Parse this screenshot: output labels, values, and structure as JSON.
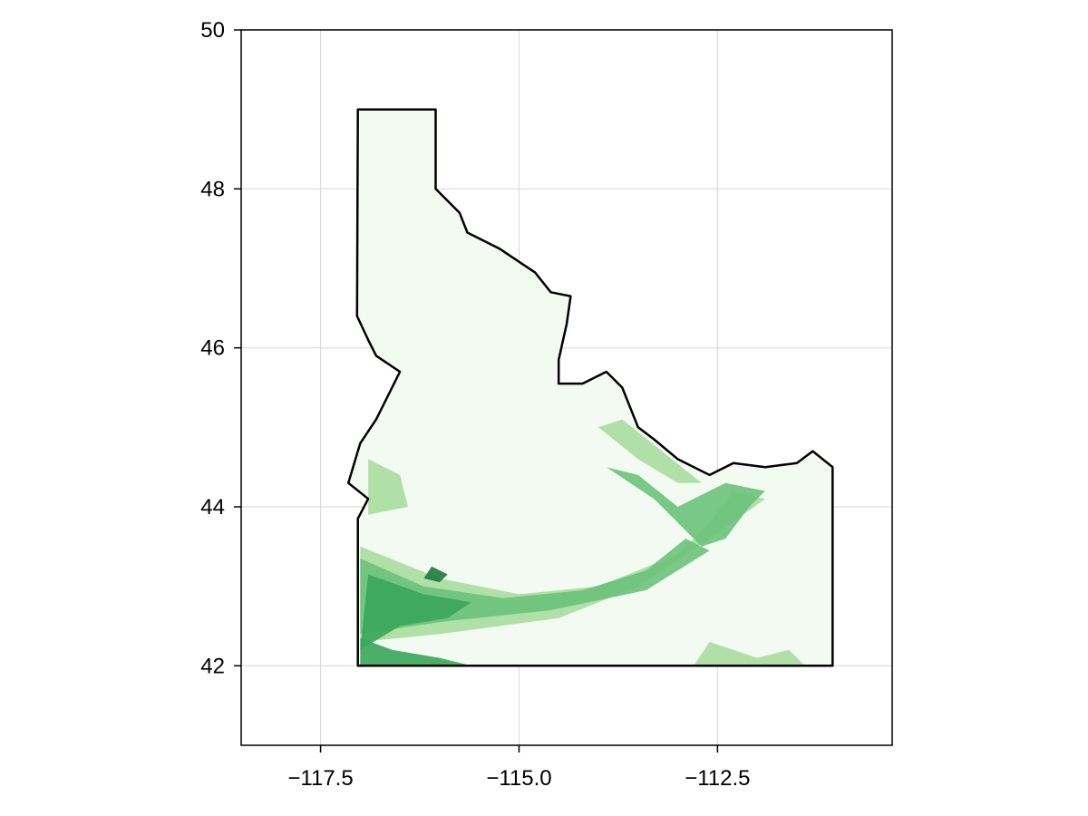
{
  "chart_data": {
    "type": "heatmap",
    "projection": "longitude-latitude",
    "xlim": [
      -118.5,
      -110.3
    ],
    "ylim": [
      41,
      50
    ],
    "x_ticks": [
      {
        "value": -117.5,
        "label": "−117.5"
      },
      {
        "value": -115.0,
        "label": "−115.0"
      },
      {
        "value": -112.5,
        "label": "−112.5"
      }
    ],
    "y_ticks": [
      {
        "value": 42,
        "label": "42"
      },
      {
        "value": 44,
        "label": "44"
      },
      {
        "value": 46,
        "label": "46"
      },
      {
        "value": 48,
        "label": "48"
      },
      {
        "value": 50,
        "label": "50"
      }
    ],
    "grid": true,
    "legend": "none",
    "colormap": "greens",
    "colors": {
      "boundary": "#000000",
      "background_fill": "#f3faf1",
      "light_green": "#a8dca0",
      "medium_green": "#6cc27a",
      "dark_green": "#3aa65a",
      "darkest_green": "#1f7a3f",
      "grid": "#dddddd"
    },
    "region": {
      "name": "Idaho",
      "outline": [
        [
          -117.03,
          49.0
        ],
        [
          -116.05,
          49.0
        ],
        [
          -116.05,
          48.0
        ],
        [
          -115.75,
          47.7
        ],
        [
          -115.65,
          47.45
        ],
        [
          -115.25,
          47.25
        ],
        [
          -114.8,
          46.95
        ],
        [
          -114.6,
          46.7
        ],
        [
          -114.35,
          46.65
        ],
        [
          -114.4,
          46.3
        ],
        [
          -114.5,
          45.85
        ],
        [
          -114.5,
          45.55
        ],
        [
          -114.2,
          45.55
        ],
        [
          -113.9,
          45.7
        ],
        [
          -113.7,
          45.5
        ],
        [
          -113.5,
          45.0
        ],
        [
          -113.3,
          44.85
        ],
        [
          -113.0,
          44.6
        ],
        [
          -112.6,
          44.4
        ],
        [
          -112.3,
          44.55
        ],
        [
          -111.9,
          44.5
        ],
        [
          -111.5,
          44.55
        ],
        [
          -111.3,
          44.7
        ],
        [
          -111.05,
          44.5
        ],
        [
          -111.05,
          42.0
        ],
        [
          -117.03,
          42.0
        ],
        [
          -117.03,
          43.85
        ],
        [
          -116.9,
          44.1
        ],
        [
          -117.15,
          44.3
        ],
        [
          -117.0,
          44.8
        ],
        [
          -116.8,
          45.1
        ],
        [
          -116.6,
          45.5
        ],
        [
          -116.5,
          45.7
        ],
        [
          -116.8,
          45.9
        ],
        [
          -116.9,
          46.1
        ],
        [
          -117.04,
          46.4
        ],
        [
          -117.03,
          49.0
        ]
      ]
    },
    "density_zones": [
      {
        "level": "light",
        "polygon": [
          [
            -117.0,
            43.5
          ],
          [
            -116.0,
            43.1
          ],
          [
            -115.0,
            42.9
          ],
          [
            -114.0,
            43.0
          ],
          [
            -113.0,
            43.4
          ],
          [
            -112.6,
            43.8
          ],
          [
            -112.3,
            44.2
          ],
          [
            -111.9,
            44.1
          ],
          [
            -112.6,
            43.6
          ],
          [
            -113.5,
            43.0
          ],
          [
            -114.5,
            42.6
          ],
          [
            -116.0,
            42.4
          ],
          [
            -117.0,
            42.3
          ]
        ]
      },
      {
        "level": "medium",
        "polygon": [
          [
            -117.0,
            43.35
          ],
          [
            -116.2,
            43.0
          ],
          [
            -115.2,
            42.85
          ],
          [
            -114.2,
            42.95
          ],
          [
            -113.4,
            43.2
          ],
          [
            -112.9,
            43.6
          ],
          [
            -112.6,
            43.45
          ],
          [
            -113.4,
            42.95
          ],
          [
            -114.6,
            42.7
          ],
          [
            -116.0,
            42.55
          ],
          [
            -117.0,
            42.4
          ]
        ]
      },
      {
        "level": "dark",
        "polygon": [
          [
            -116.9,
            43.15
          ],
          [
            -116.2,
            42.9
          ],
          [
            -115.6,
            42.8
          ],
          [
            -115.9,
            42.6
          ],
          [
            -116.5,
            42.5
          ],
          [
            -117.0,
            42.2
          ]
        ]
      },
      {
        "level": "medium",
        "polygon": [
          [
            -113.9,
            44.5
          ],
          [
            -113.3,
            44.1
          ],
          [
            -112.9,
            43.7
          ],
          [
            -112.7,
            43.5
          ],
          [
            -112.4,
            43.6
          ],
          [
            -112.1,
            44.0
          ],
          [
            -111.9,
            44.2
          ],
          [
            -112.4,
            44.3
          ],
          [
            -113.0,
            44.0
          ],
          [
            -113.5,
            44.4
          ]
        ]
      },
      {
        "level": "light",
        "polygon": [
          [
            -114.0,
            45.0
          ],
          [
            -113.5,
            44.6
          ],
          [
            -113.0,
            44.3
          ],
          [
            -112.7,
            44.3
          ],
          [
            -113.2,
            44.7
          ],
          [
            -113.7,
            45.1
          ]
        ]
      },
      {
        "level": "light",
        "polygon": [
          [
            -116.9,
            44.6
          ],
          [
            -116.5,
            44.4
          ],
          [
            -116.4,
            44.0
          ],
          [
            -116.9,
            43.9
          ]
        ]
      },
      {
        "level": "dark",
        "polygon": [
          [
            -117.0,
            42.35
          ],
          [
            -116.6,
            42.2
          ],
          [
            -116.0,
            42.1
          ],
          [
            -115.6,
            42.0
          ],
          [
            -117.0,
            42.0
          ]
        ]
      },
      {
        "level": "light",
        "polygon": [
          [
            -112.6,
            42.3
          ],
          [
            -112.0,
            42.1
          ],
          [
            -111.6,
            42.2
          ],
          [
            -111.4,
            42.0
          ],
          [
            -112.8,
            42.0
          ]
        ]
      },
      {
        "level": "darkest",
        "polygon": [
          [
            -116.1,
            43.25
          ],
          [
            -115.9,
            43.15
          ],
          [
            -116.0,
            43.05
          ],
          [
            -116.2,
            43.1
          ]
        ]
      }
    ]
  }
}
